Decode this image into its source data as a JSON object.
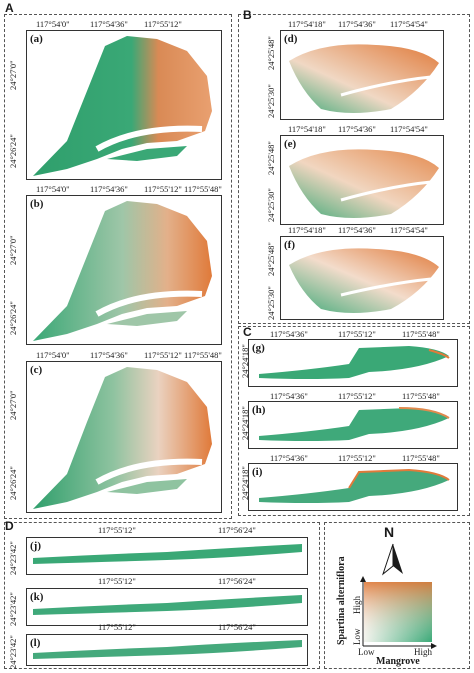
{
  "sections": {
    "A": "A",
    "B": "B",
    "C": "C",
    "D": "D"
  },
  "panels": {
    "a": "(a)",
    "b": "(b)",
    "c": "(c)",
    "d": "(d)",
    "e": "(e)",
    "f": "(f)",
    "g": "(g)",
    "h": "(h)",
    "i": "(i)",
    "j": "(j)",
    "k": "(k)",
    "l": "(l)"
  },
  "ticks_A_top": [
    "117°54'0\"",
    "117°54'36\"",
    "117°55'12\"",
    "117°55'48\""
  ],
  "ticks_A_left": [
    "24°27'0\"",
    "24°26'24\""
  ],
  "ticks_A_left_b": [
    "24°27'0\"",
    "24°26'24\""
  ],
  "ticks_B_top": [
    "117°54'18\"",
    "117°54'36\"",
    "117°54'54\""
  ],
  "ticks_B_left": [
    "24°25'48\"",
    "24°25'30\""
  ],
  "ticks_C_top": [
    "117°54'36\"",
    "117°55'12\"",
    "117°55'48\""
  ],
  "ticks_C_left": "24°24'18\"",
  "ticks_D_top": [
    "117°55'12\"",
    "117°56'24\""
  ],
  "ticks_D_left": "24°23'42\"",
  "legend": {
    "north": "N",
    "y_title": "Spartina alterniflora",
    "y_high": "High",
    "y_low": "Low",
    "x_low": "Low",
    "x_high": "High",
    "x_title": "Mangrove",
    "colors": {
      "high_spartina": "#e07a3a",
      "high_mangrove": "#3aa876",
      "low": "#f4f4ee",
      "both": "#6b5a2e"
    }
  }
}
